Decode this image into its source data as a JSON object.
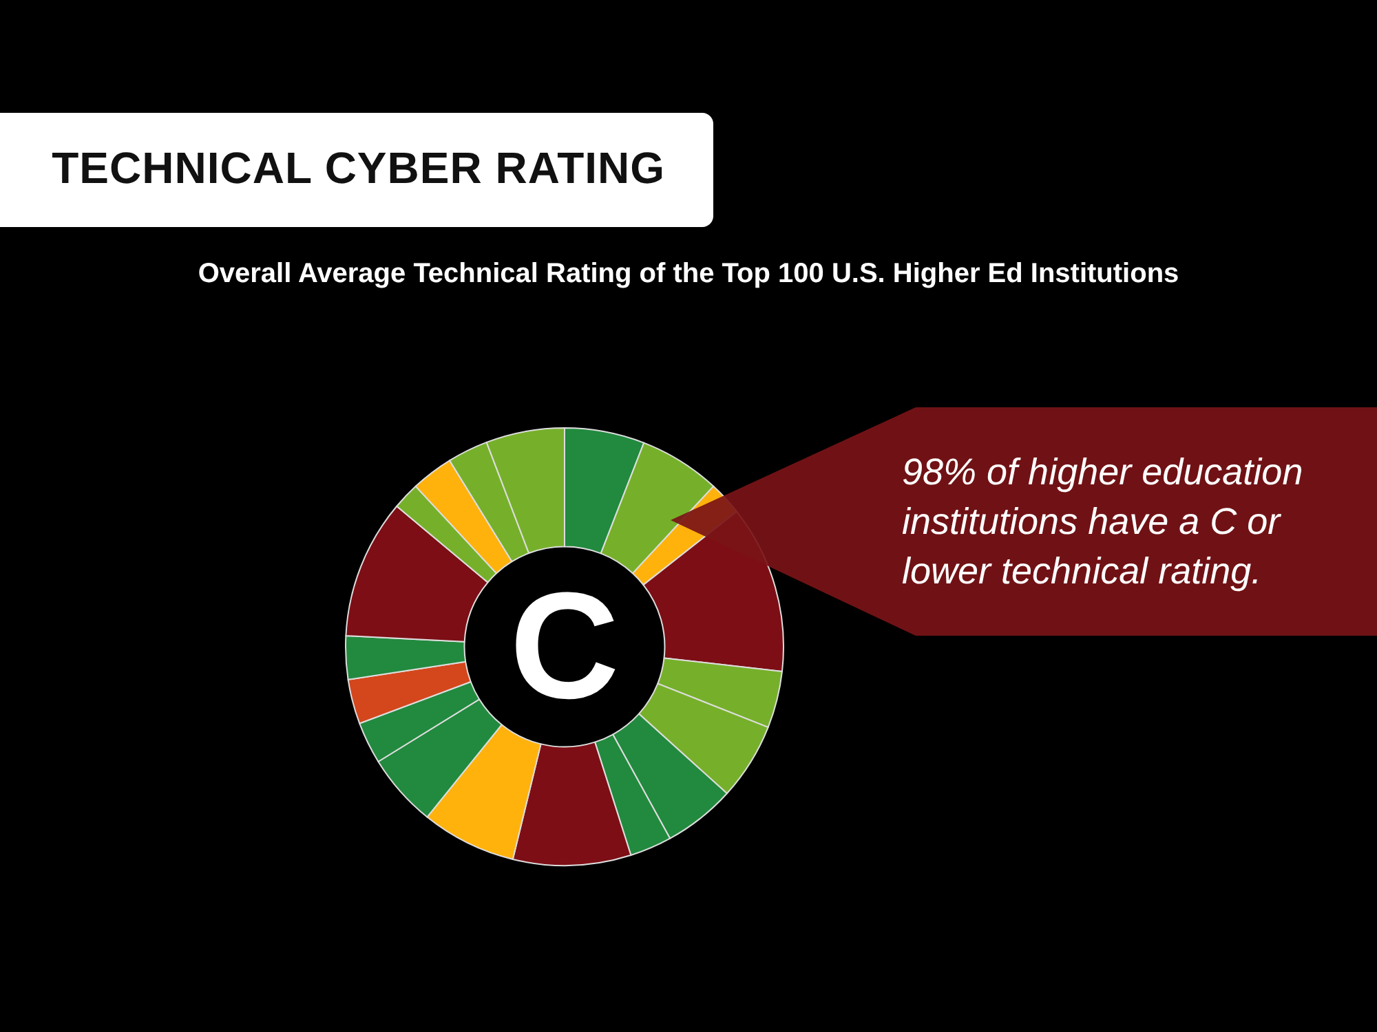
{
  "chart_data": {
    "type": "donut",
    "title": "TECHNICAL CYBER RATING",
    "subtitle": "Overall Average Technical Rating of the Top 100 U.S. Higher Ed Institutions",
    "annotations": [
      "C",
      "98% of higher education institutions have a C or lower technical rating."
    ],
    "categories": [
      null,
      null,
      null,
      null,
      null,
      null,
      null,
      null,
      null,
      null,
      null,
      null,
      null,
      null,
      null,
      null,
      null,
      null,
      null
    ],
    "values": [
      5.9,
      6.0,
      2.5,
      12.4,
      4.2,
      5.7,
      5.3,
      3.1,
      8.7,
      7.0,
      5.4,
      3.1,
      3.3,
      3.2,
      10.3,
      2.0,
      3.1,
      3.0,
      5.8
    ],
    "colors": [
      "#218a3e",
      "#76b02a",
      "#ffb20c",
      "#7d0e15",
      "#76b02a",
      "#76b02a",
      "#218a3e",
      "#218a3e",
      "#7d0e15",
      "#ffb20c",
      "#218a3e",
      "#218a3e",
      "#d4461c",
      "#218a3e",
      "#7d0e15",
      "#76b02a",
      "#ffb20c",
      "#76b02a",
      "#76b02a"
    ]
  }
}
